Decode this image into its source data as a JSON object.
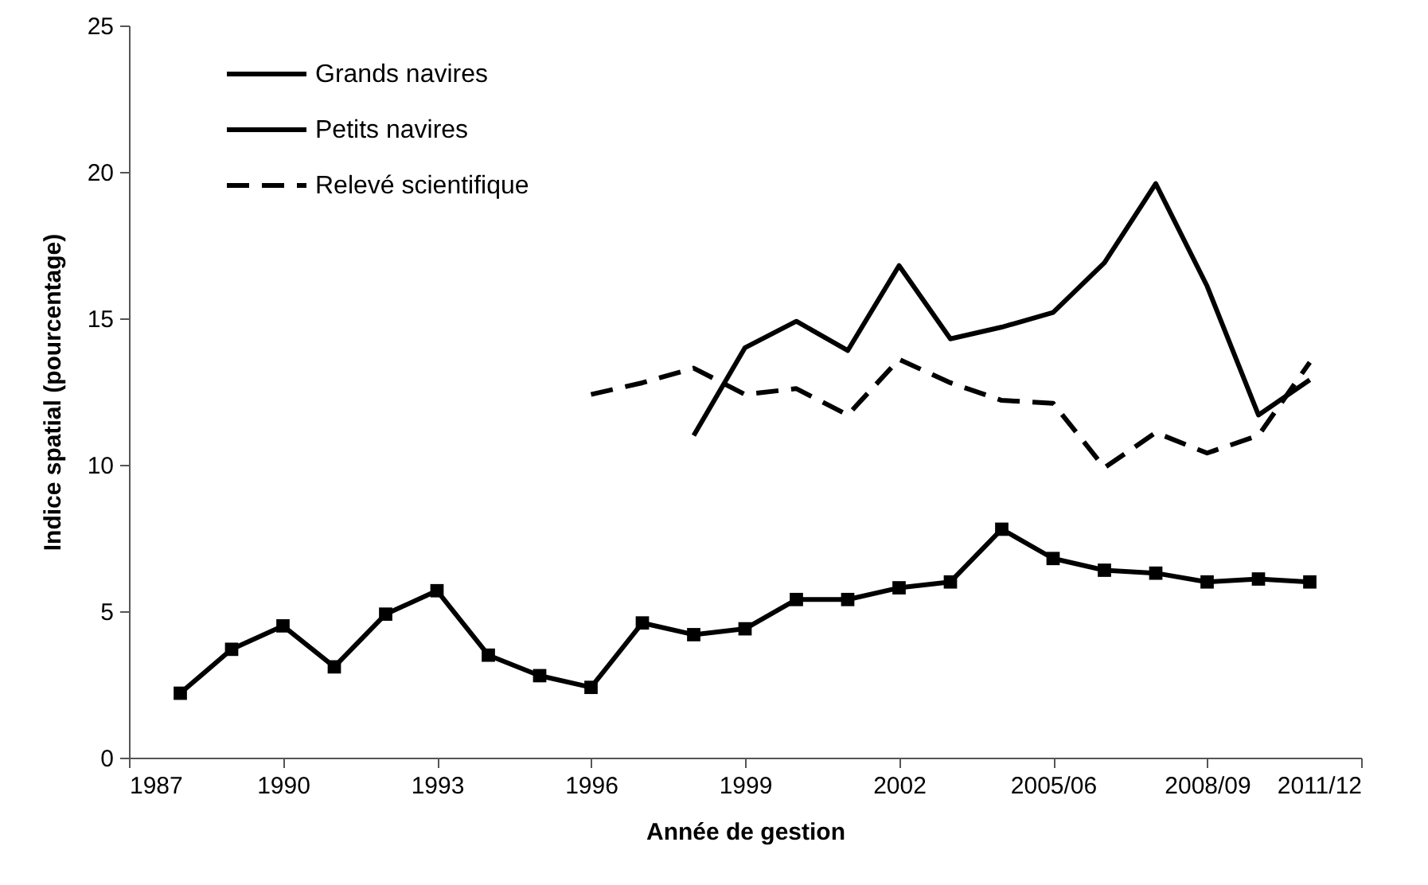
{
  "chart_data": {
    "type": "line",
    "xlabel": "Année de gestion",
    "ylabel": "Indice spatial (pourcentage)",
    "x": [
      1988,
      1989,
      1990,
      1991,
      1992,
      1993,
      1994,
      1995,
      1996,
      1997,
      1998,
      1999,
      2000,
      2001,
      2002,
      2003,
      2004,
      2005,
      2006,
      2007,
      2008,
      2009,
      2010
    ],
    "series": [
      {
        "name": "Grands navires",
        "color": "#000000",
        "marker": "square",
        "line_style": "solid",
        "values": [
          2.2,
          3.7,
          4.5,
          3.1,
          4.9,
          5.7,
          3.5,
          2.8,
          2.4,
          4.6,
          4.2,
          4.4,
          5.4,
          5.4,
          5.8,
          6.0,
          7.8,
          6.8,
          6.4,
          6.3,
          6.0,
          6.1,
          6.0
        ]
      },
      {
        "name": "Petits navires",
        "color": "#000000",
        "marker": "none",
        "line_style": "solid",
        "values": [
          null,
          null,
          null,
          null,
          null,
          null,
          null,
          null,
          null,
          null,
          11.0,
          14.0,
          14.9,
          13.9,
          16.8,
          14.3,
          14.7,
          15.2,
          16.9,
          19.6,
          16.1,
          11.7,
          12.9
        ]
      },
      {
        "name": "Relevé scientifique",
        "color": "#000000",
        "marker": "none",
        "line_style": "dashed",
        "values": [
          null,
          null,
          null,
          null,
          null,
          null,
          null,
          null,
          12.4,
          12.8,
          13.3,
          12.4,
          12.6,
          11.7,
          13.6,
          12.8,
          12.2,
          12.1,
          9.9,
          11.1,
          10.4,
          11.0,
          13.5
        ]
      }
    ],
    "xlim": [
      1987,
      2011
    ],
    "xticks": [
      1987,
      1990,
      1993,
      1996,
      1999,
      2002,
      {
        "value": 2005,
        "label": "2005/06"
      },
      {
        "value": 2008,
        "label": "2008/09"
      },
      {
        "value": 2011,
        "label": "2011/12"
      }
    ],
    "ylim": [
      0,
      25
    ],
    "yticks": [
      0,
      5,
      10,
      15,
      20,
      25
    ],
    "grid": false,
    "legend": "top left"
  }
}
